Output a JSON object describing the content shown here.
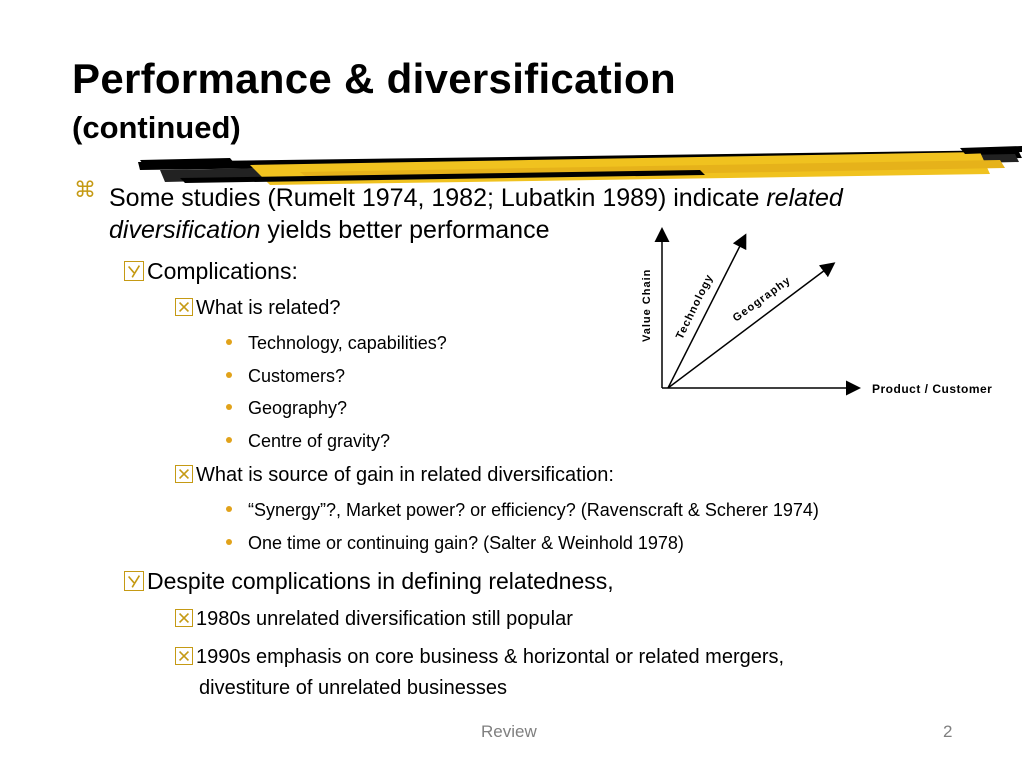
{
  "slide": {
    "title": "Performance & diversification",
    "subtitle": "(continued)",
    "main_bullet": {
      "icon": "command-symbol-icon",
      "text_before": "Some studies (Rumelt 1974, 1982; Lubatkin 1989) indicate",
      "italic": "related",
      "italic_2": "diversification",
      "text_after": "yields better performance"
    },
    "complications": "Complications:",
    "what_related": "What is related?",
    "related_items": [
      "Technology, capabilities?",
      "Customers?",
      "Geography?",
      "Centre of gravity?"
    ],
    "source_of_gain": "What is source of gain in related diversification:",
    "gain_items": [
      "“Synergy”?, Market power? or efficiency? (Ravenscraft & Scherer 1974)",
      "One time or continuing gain?  (Salter & Weinhold 1978)"
    ],
    "despite": "Despite complications in defining relatedness,",
    "despite_items": [
      "1980s unrelated diversification still popular",
      "1990s emphasis on core business & horizontal or related mergers,",
      "divestiture of unrelated businesses"
    ]
  },
  "diagram": {
    "y_axis": "Value Chain",
    "x_axis": "Product / Customer",
    "arrow1": "Technology",
    "arrow2": "Geography"
  },
  "footer": {
    "center": "Review",
    "page": "2"
  },
  "colors": {
    "accent": "#c59a14",
    "brush": "#f0c21f",
    "footer": "#7f7f7f"
  }
}
